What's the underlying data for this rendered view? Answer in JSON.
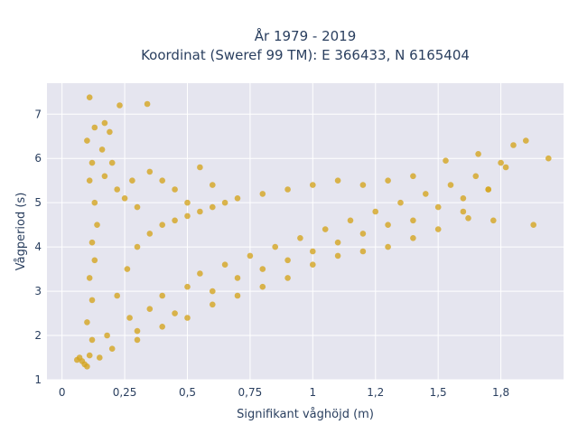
{
  "chart_data": {
    "type": "scatter",
    "title": "År 1979 - 2019",
    "subtitle": "Koordinat (Sweref 99 TM): E 366433, N 6165404",
    "xlabel": "Signifikant våghöjd (m)",
    "ylabel": "Vågperiod (s)",
    "xlim": [
      -0.06,
      2.0
    ],
    "ylim": [
      1,
      7.7
    ],
    "x_ticks": [
      {
        "value": 0,
        "label": "0"
      },
      {
        "value": 0.25,
        "label": "0,25"
      },
      {
        "value": 0.5,
        "label": "0,5"
      },
      {
        "value": 0.75,
        "label": "0,75"
      },
      {
        "value": 1,
        "label": "1"
      },
      {
        "value": 1.25,
        "label": "1,2"
      },
      {
        "value": 1.5,
        "label": "1,5"
      },
      {
        "value": 1.75,
        "label": "1,8"
      }
    ],
    "y_ticks": [
      {
        "value": 1,
        "label": "1"
      },
      {
        "value": 2,
        "label": "2"
      },
      {
        "value": 3,
        "label": "3"
      },
      {
        "value": 4,
        "label": "4"
      },
      {
        "value": 5,
        "label": "5"
      },
      {
        "value": 6,
        "label": "6"
      },
      {
        "value": 7,
        "label": "7"
      }
    ],
    "grid": true,
    "marker_color": "#D4A520",
    "plot_bgcolor": "#E5E5EF",
    "series": [
      {
        "points": [
          [
            0.06,
            1.45
          ],
          [
            0.07,
            1.5
          ],
          [
            0.08,
            1.42
          ],
          [
            0.09,
            1.35
          ],
          [
            0.1,
            1.3
          ],
          [
            0.11,
            1.55
          ],
          [
            0.12,
            1.9
          ],
          [
            0.1,
            2.3
          ],
          [
            0.12,
            2.8
          ],
          [
            0.11,
            3.3
          ],
          [
            0.13,
            3.7
          ],
          [
            0.12,
            4.1
          ],
          [
            0.14,
            4.5
          ],
          [
            0.13,
            5.0
          ],
          [
            0.11,
            5.5
          ],
          [
            0.12,
            5.9
          ],
          [
            0.1,
            6.4
          ],
          [
            0.13,
            6.7
          ],
          [
            0.11,
            7.38
          ],
          [
            0.17,
            6.8
          ],
          [
            0.23,
            7.2
          ],
          [
            0.19,
            6.6
          ],
          [
            0.16,
            6.2
          ],
          [
            0.2,
            5.9
          ],
          [
            0.17,
            5.6
          ],
          [
            0.22,
            5.3
          ],
          [
            0.25,
            5.1
          ],
          [
            0.28,
            5.5
          ],
          [
            0.34,
            7.23
          ],
          [
            0.3,
            4.9
          ],
          [
            0.35,
            5.7
          ],
          [
            0.4,
            5.5
          ],
          [
            0.45,
            5.3
          ],
          [
            0.5,
            5.0
          ],
          [
            0.55,
            5.8
          ],
          [
            0.6,
            5.4
          ],
          [
            0.27,
            2.4
          ],
          [
            0.3,
            2.1
          ],
          [
            0.35,
            2.6
          ],
          [
            0.4,
            2.9
          ],
          [
            0.45,
            2.5
          ],
          [
            0.5,
            3.1
          ],
          [
            0.55,
            3.4
          ],
          [
            0.6,
            3.0
          ],
          [
            0.65,
            3.6
          ],
          [
            0.7,
            3.3
          ],
          [
            0.75,
            3.8
          ],
          [
            0.8,
            3.5
          ],
          [
            0.85,
            4.0
          ],
          [
            0.9,
            3.7
          ],
          [
            0.95,
            4.2
          ],
          [
            1.0,
            3.9
          ],
          [
            1.05,
            4.4
          ],
          [
            1.1,
            4.1
          ],
          [
            1.15,
            4.6
          ],
          [
            1.2,
            4.3
          ],
          [
            1.25,
            4.8
          ],
          [
            1.3,
            4.5
          ],
          [
            1.35,
            5.0
          ],
          [
            1.4,
            4.6
          ],
          [
            1.45,
            5.2
          ],
          [
            1.5,
            4.9
          ],
          [
            1.55,
            5.4
          ],
          [
            1.6,
            5.1
          ],
          [
            1.65,
            5.6
          ],
          [
            1.7,
            5.3
          ],
          [
            1.75,
            5.9
          ],
          [
            1.8,
            6.3
          ],
          [
            1.85,
            6.4
          ],
          [
            1.94,
            6.0
          ],
          [
            1.77,
            5.8
          ],
          [
            1.88,
            4.5
          ],
          [
            1.72,
            4.6
          ],
          [
            1.6,
            4.8
          ],
          [
            1.5,
            4.4
          ],
          [
            1.4,
            4.2
          ],
          [
            1.3,
            4.0
          ],
          [
            1.2,
            3.9
          ],
          [
            1.1,
            3.8
          ],
          [
            1.0,
            3.6
          ],
          [
            0.9,
            3.3
          ],
          [
            0.8,
            3.1
          ],
          [
            0.7,
            2.9
          ],
          [
            0.6,
            2.7
          ],
          [
            0.5,
            2.4
          ],
          [
            0.4,
            2.2
          ],
          [
            0.3,
            1.9
          ],
          [
            0.2,
            1.7
          ],
          [
            0.15,
            1.5
          ],
          [
            0.18,
            2.0
          ],
          [
            0.22,
            2.9
          ],
          [
            0.26,
            3.5
          ],
          [
            0.3,
            4.0
          ],
          [
            0.35,
            4.3
          ],
          [
            0.4,
            4.5
          ],
          [
            0.45,
            4.6
          ],
          [
            0.5,
            4.7
          ],
          [
            0.55,
            4.8
          ],
          [
            0.6,
            4.9
          ],
          [
            0.65,
            5.0
          ],
          [
            0.7,
            5.1
          ],
          [
            0.8,
            5.2
          ],
          [
            0.9,
            5.3
          ],
          [
            1.0,
            5.4
          ],
          [
            1.1,
            5.5
          ],
          [
            1.2,
            5.4
          ],
          [
            1.3,
            5.5
          ],
          [
            1.4,
            5.6
          ],
          [
            1.53,
            5.95
          ],
          [
            1.66,
            6.1
          ],
          [
            1.7,
            5.3
          ],
          [
            1.62,
            4.65
          ]
        ]
      }
    ]
  }
}
